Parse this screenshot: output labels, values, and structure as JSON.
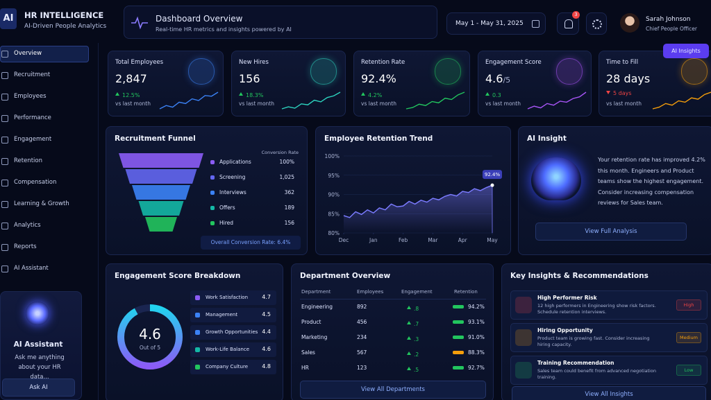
{
  "header": {
    "logo": "AI",
    "title": "HR INTELLIGENCE",
    "subtitle": "AI-Driven People Analytics",
    "page_title": "Dashboard Overview",
    "page_subtitle": "Real-time HR metrics and insights powered by AI",
    "date_range": "May 1 - May 31, 2025",
    "notifications": "3",
    "user_name": "Sarah Johnson",
    "user_role": "Chief People Officer",
    "insights_button": "AI Insights"
  },
  "sidebar": {
    "active": 0,
    "items": [
      "Overview",
      "Recruitment",
      "Employees",
      "Performance",
      "Engagement",
      "Retention",
      "Compensation",
      "Learning & Growth",
      "Analytics",
      "Reports",
      "AI Assistant"
    ]
  },
  "assistant_card": {
    "title": "AI Assistant",
    "text": "Ask me anything about your HR data...",
    "button": "Ask AI"
  },
  "kpis": [
    {
      "label": "Total Employees",
      "value": "2,847",
      "change": "12.5%",
      "direction": "up",
      "period": "vs last month",
      "color": "#3b82f6",
      "spark": [
        3,
        4,
        3.5,
        5,
        4.6,
        6,
        5.5,
        7,
        6.8,
        8
      ]
    },
    {
      "label": "New Hires",
      "value": "156",
      "change": "18.3%",
      "direction": "up",
      "period": "vs last month",
      "color": "#2dd4bf",
      "spark": [
        3,
        3.6,
        3.2,
        4.5,
        4.2,
        5.6,
        5.1,
        6.4,
        6.9,
        8
      ]
    },
    {
      "label": "Retention Rate",
      "value": "92.4%",
      "change": "4.2%",
      "direction": "up",
      "period": "vs last month",
      "color": "#22c55e",
      "spark": [
        3,
        3.4,
        4.4,
        4,
        5.2,
        4.8,
        6.2,
        5.8,
        7.2,
        8
      ]
    },
    {
      "label": "Engagement Score",
      "value": "4.6",
      "unit": "/5",
      "change": "0.3",
      "direction": "up",
      "period": "vs last month",
      "color": "#a855f7",
      "spark": [
        3,
        3.8,
        3.3,
        4.6,
        4.1,
        5.3,
        5,
        6.1,
        6.6,
        8
      ]
    },
    {
      "label": "Time to Fill",
      "value": "28 days",
      "change": "5 days",
      "direction": "down",
      "period": "vs last month",
      "color": "#f59e0b",
      "spark": [
        3,
        3.5,
        4.6,
        4.1,
        5.4,
        5,
        6.3,
        5.9,
        7.3,
        8
      ]
    }
  ],
  "funnel": {
    "title": "Recruitment Funnel",
    "column_header": "Conversion Rate",
    "stages": [
      {
        "name": "Applications",
        "value": "100%",
        "color": "#8b5cf6"
      },
      {
        "name": "Screening",
        "value": "1,025",
        "color": "#6366f1"
      },
      {
        "name": "Interviews",
        "value": "362",
        "color": "#3b82f6"
      },
      {
        "name": "Offers",
        "value": "189",
        "color": "#14b8a6"
      },
      {
        "name": "Hired",
        "value": "156",
        "color": "#22c55e"
      }
    ],
    "footer": "Overall Conversion Rate: 6.4%"
  },
  "retention_trend": {
    "type": "line",
    "title": "Employee Retention Trend",
    "color": "#7b7bff",
    "x": [
      0,
      0.2,
      0.4,
      0.6,
      0.8,
      1,
      1.2,
      1.4,
      1.6,
      1.8,
      2,
      2.2,
      2.4,
      2.6,
      2.8,
      3,
      3.2,
      3.4,
      3.6,
      3.8,
      4,
      4.2,
      4.4,
      4.6,
      4.8,
      5
    ],
    "values": [
      84.5,
      84,
      85.5,
      84.8,
      86,
      85.2,
      86.5,
      86,
      87.5,
      86.8,
      87,
      88.2,
      87.5,
      88.5,
      88,
      89,
      88.6,
      89.5,
      90,
      89.6,
      90.8,
      90.5,
      91.5,
      91,
      91.8,
      92.4
    ],
    "xlim": [
      0,
      5
    ],
    "xticks": [
      {
        "value": 0,
        "label": "Dec"
      },
      {
        "value": 1,
        "label": "Jan"
      },
      {
        "value": 2,
        "label": "Feb"
      },
      {
        "value": 3,
        "label": "Mar"
      },
      {
        "value": 4,
        "label": "Apr"
      },
      {
        "value": 5,
        "label": "May"
      }
    ],
    "ylim": [
      80,
      100
    ],
    "yticks": [
      {
        "value": 80,
        "label": "80%"
      },
      {
        "value": 85,
        "label": "85%"
      },
      {
        "value": 90,
        "label": "90%"
      },
      {
        "value": 95,
        "label": "95%"
      },
      {
        "value": 100,
        "label": "100%"
      }
    ],
    "annotation": "92.4%",
    "grid": true
  },
  "ai_insight": {
    "title": "AI Insight",
    "text": "Your retention rate has improved 4.2% this month. Engineers and Product teams show the highest engagement. Consider increasing compensation reviews for Sales team.",
    "button": "View Full Analysis"
  },
  "engagement": {
    "title": "Engagement Score Breakdown",
    "score": 4.6,
    "range": [
      0,
      5
    ],
    "score_sub": "Out of 5",
    "items": [
      {
        "name": "Work Satisfaction",
        "value": 4.7,
        "color": "#8b5cf6"
      },
      {
        "name": "Management",
        "value": 4.5,
        "color": "#3b82f6"
      },
      {
        "name": "Growth Opportunities",
        "value": 4.4,
        "color": "#3b82f6"
      },
      {
        "name": "Work-Life Balance",
        "value": 4.6,
        "color": "#14b8a6"
      },
      {
        "name": "Company Culture",
        "value": 4.8,
        "color": "#22c55e"
      }
    ]
  },
  "departments": {
    "title": "Department Overview",
    "columns": [
      "Department",
      "Employees",
      "Engagement",
      "Retention"
    ],
    "rows": [
      {
        "name": "Engineering",
        "employees": "892",
        "engagement": ".8",
        "retention": "94.2%",
        "bar_color": "#22c55e"
      },
      {
        "name": "Product",
        "employees": "456",
        "engagement": ".7",
        "retention": "93.1%",
        "bar_color": "#22c55e"
      },
      {
        "name": "Marketing",
        "employees": "234",
        "engagement": ".3",
        "retention": "91.0%",
        "bar_color": "#22c55e"
      },
      {
        "name": "Sales",
        "employees": "567",
        "engagement": ".2",
        "retention": "88.3%",
        "bar_color": "#f59e0b"
      },
      {
        "name": "HR",
        "employees": "123",
        "engagement": ".5",
        "retention": "92.7%",
        "bar_color": "#22c55e"
      }
    ],
    "button": "View All Departments"
  },
  "key_insights": {
    "title": "Key Insights & Recommendations",
    "items": [
      {
        "title": "High Performer Risk",
        "text": "12 high performers in Engineering show risk factors. Schedule retention interviews.",
        "badge": "High",
        "color": "#ef4444"
      },
      {
        "title": "Hiring Opportunity",
        "text": "Product team is growing fast. Consider increasing hiring capacity.",
        "badge": "Medium",
        "color": "#f59e0b"
      },
      {
        "title": "Training Recommendation",
        "text": "Sales team could benefit from advanced negotiation training.",
        "badge": "Low",
        "color": "#22c55e"
      }
    ],
    "button": "View All Insights"
  }
}
